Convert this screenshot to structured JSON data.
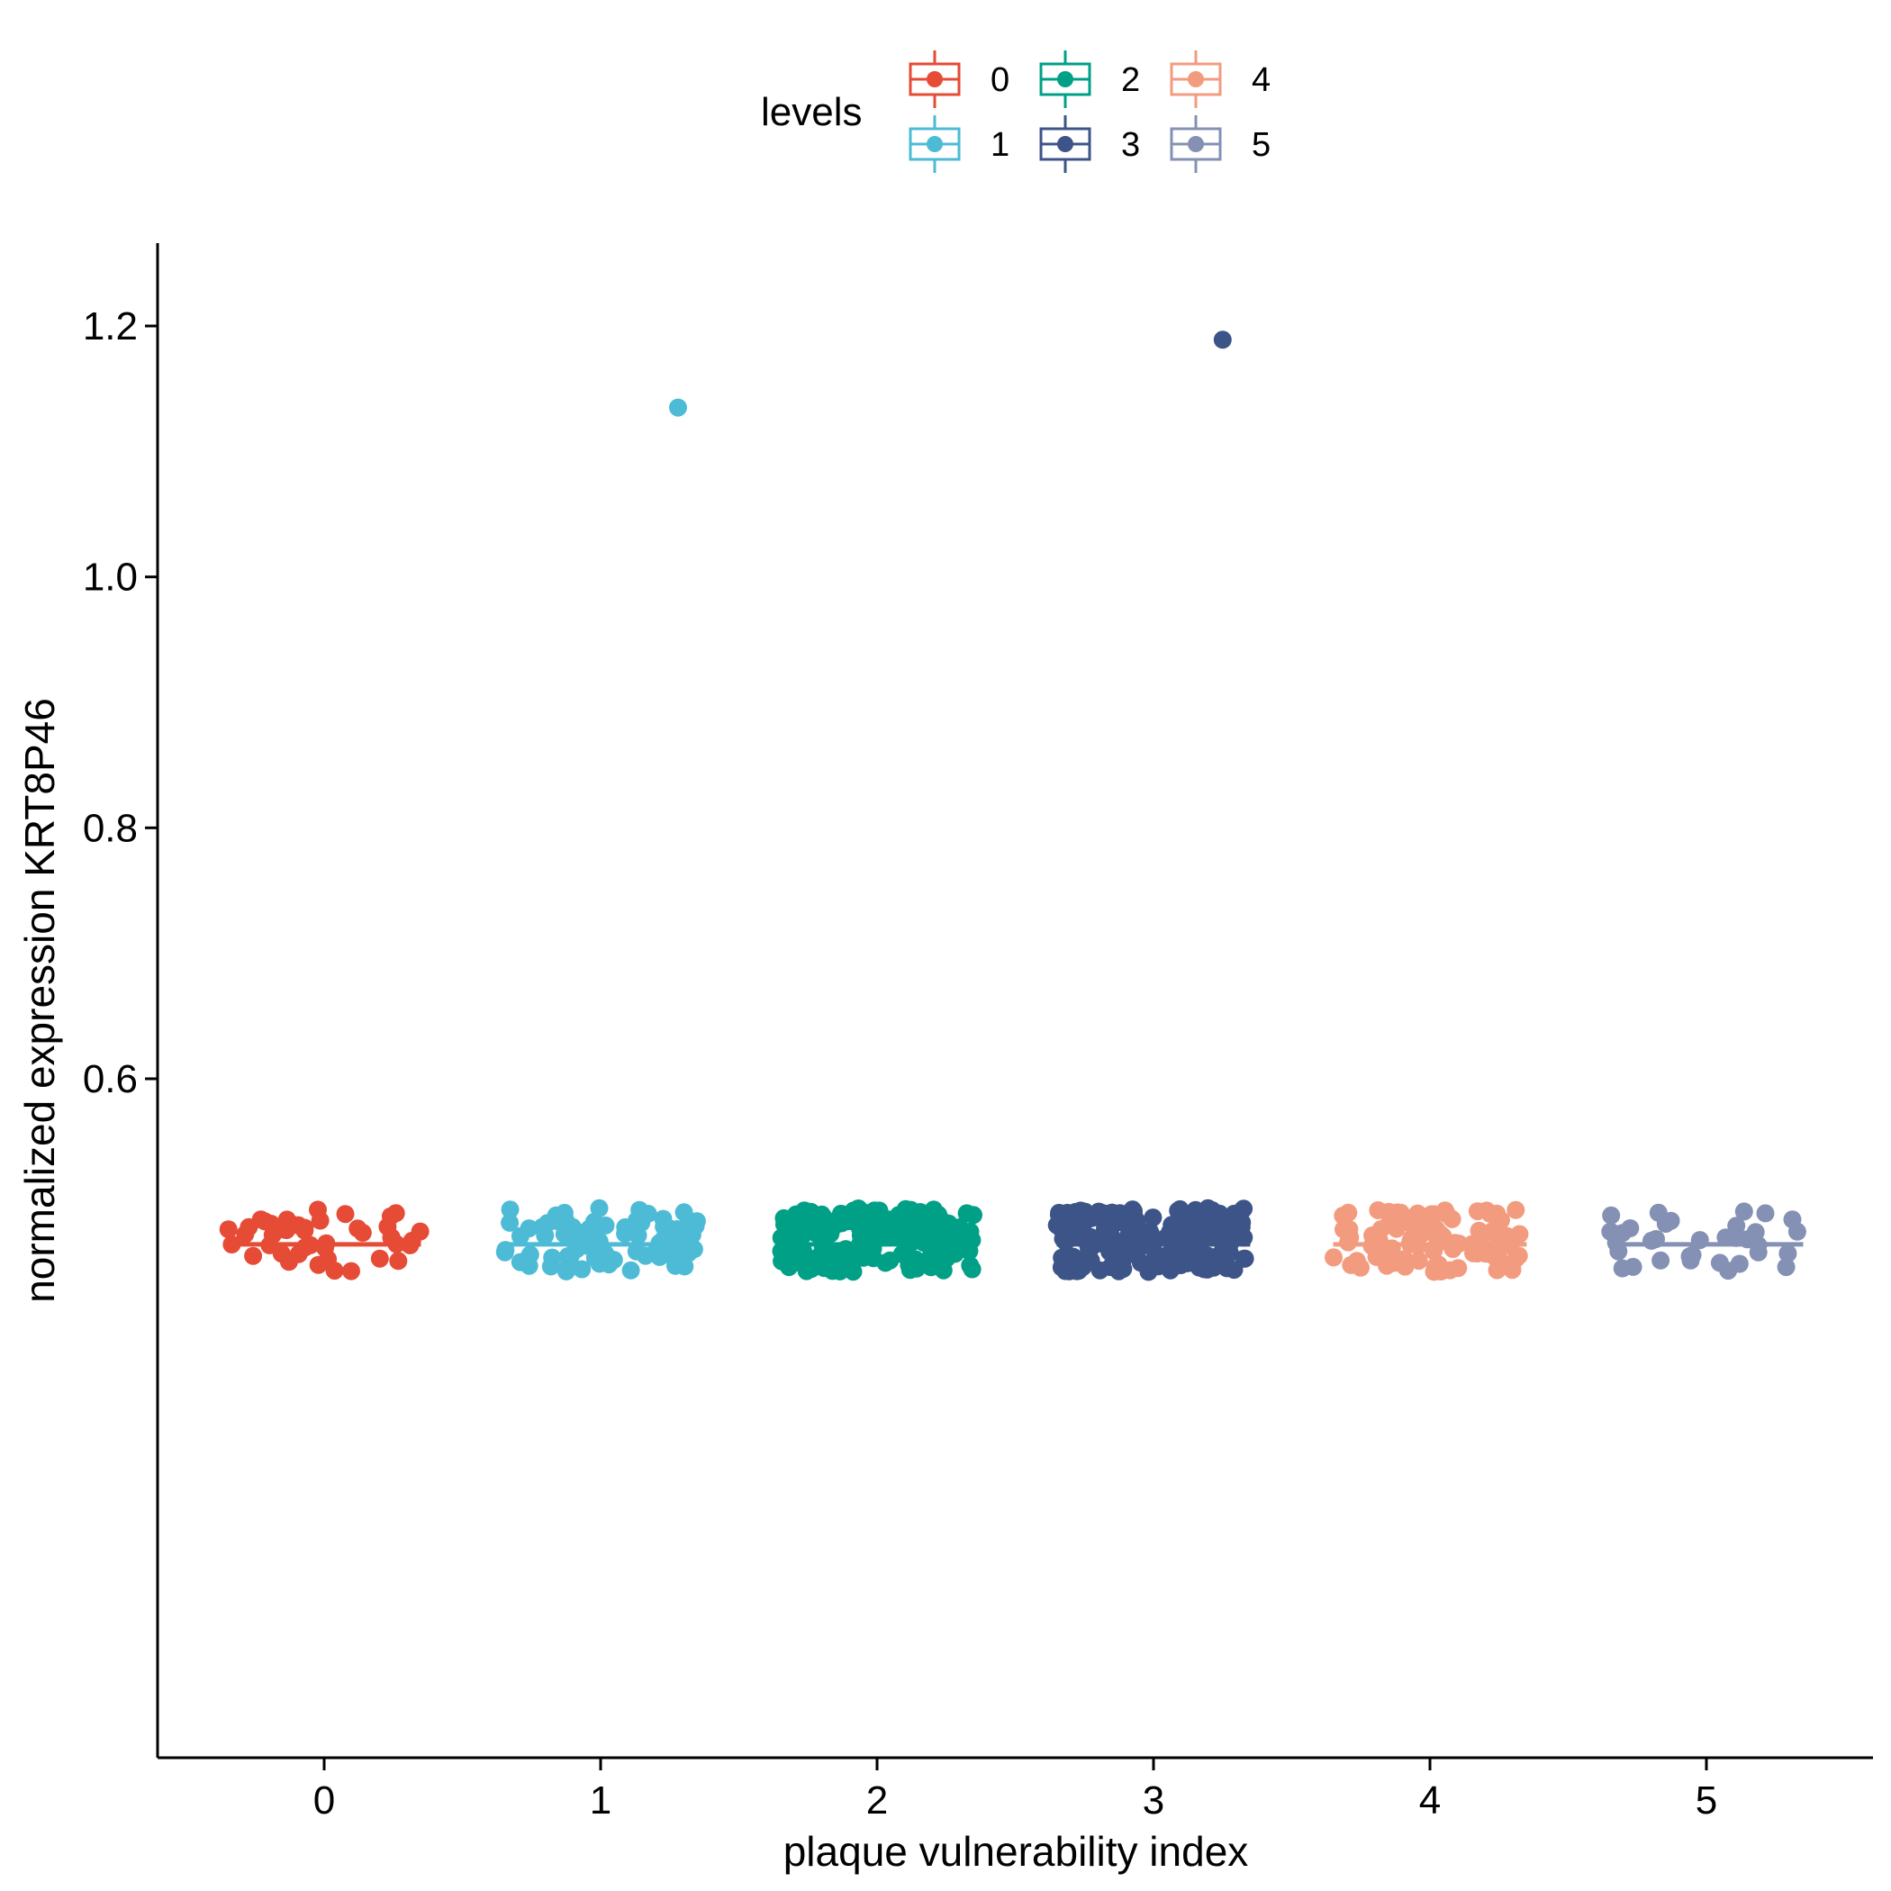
{
  "chart_data": {
    "type": "scatter",
    "subtype": "jittered strip plot with median line per group",
    "xlabel": "plaque vulnerability index",
    "ylabel": "normalized expression KRT8P46",
    "categories": [
      "0",
      "1",
      "2",
      "3",
      "4",
      "5"
    ],
    "ylim": [
      0.415,
      1.245
    ],
    "yticks": [
      0.6,
      0.8,
      1.0,
      1.2
    ],
    "ytick_labels": [
      "0.6",
      "0.8",
      "1.0",
      "1.2"
    ],
    "grid": false,
    "legend": {
      "title": "levels",
      "position": "top",
      "entries": [
        "0",
        "1",
        "2",
        "3",
        "4",
        "5"
      ]
    },
    "series": [
      {
        "name": "0",
        "color": "#E64B35",
        "n_points": 45,
        "median": 0.468,
        "range": [
          0.446,
          0.497
        ],
        "outliers": []
      },
      {
        "name": "1",
        "color": "#4DBBD5",
        "n_points": 90,
        "median": 0.468,
        "range": [
          0.446,
          0.497
        ],
        "outliers": [
          {
            "x_offset": 0.28,
            "y": 1.135
          }
        ]
      },
      {
        "name": "2",
        "color": "#00A087",
        "n_points": 160,
        "median": 0.468,
        "range": [
          0.446,
          0.497
        ],
        "outliers": []
      },
      {
        "name": "3",
        "color": "#3C5488",
        "n_points": 185,
        "median": 0.468,
        "range": [
          0.446,
          0.497
        ],
        "outliers": [
          {
            "x_offset": 0.25,
            "y": 1.189
          }
        ]
      },
      {
        "name": "4",
        "color": "#F39B7F",
        "n_points": 95,
        "median": 0.468,
        "range": [
          0.446,
          0.497
        ],
        "outliers": []
      },
      {
        "name": "5",
        "color": "#8491B4",
        "n_points": 35,
        "median": 0.468,
        "range": [
          0.446,
          0.497
        ],
        "outliers": []
      }
    ]
  }
}
